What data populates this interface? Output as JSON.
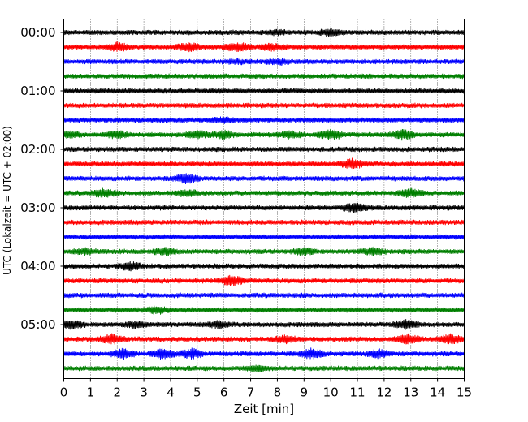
{
  "chart_data": {
    "type": "line",
    "title": "",
    "xlabel": "Zeit  [min]",
    "ylabel": "UTC (Lokalzeit = UTC + 02:00)",
    "xlim": [
      0,
      15
    ],
    "x_ticks": [
      "0",
      "1",
      "2",
      "3",
      "4",
      "5",
      "6",
      "7",
      "8",
      "9",
      "10",
      "11",
      "12",
      "13",
      "14",
      "15"
    ],
    "y_tick_labels": [
      "00:00",
      "01:00",
      "02:00",
      "03:00",
      "04:00",
      "05:00"
    ],
    "grid": "vertical dotted lines at each minute",
    "legend": "none",
    "trace_colors": [
      "#000000",
      "#ff0000",
      "#0000ff",
      "#007f00"
    ],
    "traces_per_hour": 4,
    "trace_interval_min": 15,
    "traces": [
      {
        "start": "00:00",
        "color": "#000000",
        "events": [
          {
            "t": 8.0,
            "a": 0.4
          },
          {
            "t": 10.0,
            "a": 0.6
          }
        ]
      },
      {
        "start": "00:15",
        "color": "#ff0000",
        "events": [
          {
            "t": 2.0,
            "a": 0.8
          },
          {
            "t": 4.7,
            "a": 0.8
          },
          {
            "t": 6.5,
            "a": 1.0
          },
          {
            "t": 7.8,
            "a": 0.6
          }
        ]
      },
      {
        "start": "00:30",
        "color": "#0000ff",
        "events": [
          {
            "t": 6.5,
            "a": 0.3
          },
          {
            "t": 8.0,
            "a": 0.5
          }
        ]
      },
      {
        "start": "00:45",
        "color": "#007f00",
        "events": []
      },
      {
        "start": "01:00",
        "color": "#000000",
        "events": []
      },
      {
        "start": "01:15",
        "color": "#ff0000",
        "events": []
      },
      {
        "start": "01:30",
        "color": "#0000ff",
        "events": [
          {
            "t": 6.0,
            "a": 0.4
          }
        ]
      },
      {
        "start": "01:45",
        "color": "#007f00",
        "events": [
          {
            "t": 0.2,
            "a": 0.6
          },
          {
            "t": 2.0,
            "a": 0.8
          },
          {
            "t": 5.0,
            "a": 0.7
          },
          {
            "t": 6.0,
            "a": 0.7
          },
          {
            "t": 8.5,
            "a": 0.7
          },
          {
            "t": 10.0,
            "a": 1.0
          },
          {
            "t": 12.7,
            "a": 1.0
          }
        ]
      },
      {
        "start": "02:00",
        "color": "#000000",
        "events": []
      },
      {
        "start": "02:15",
        "color": "#ff0000",
        "events": [
          {
            "t": 10.8,
            "a": 1.0
          }
        ]
      },
      {
        "start": "02:30",
        "color": "#0000ff",
        "events": [
          {
            "t": 4.6,
            "a": 1.0
          }
        ]
      },
      {
        "start": "02:45",
        "color": "#007f00",
        "events": [
          {
            "t": 1.5,
            "a": 0.8
          },
          {
            "t": 4.6,
            "a": 0.6
          },
          {
            "t": 13.0,
            "a": 0.8
          }
        ]
      },
      {
        "start": "03:00",
        "color": "#000000",
        "events": [
          {
            "t": 10.9,
            "a": 1.0
          }
        ]
      },
      {
        "start": "03:15",
        "color": "#ff0000",
        "events": []
      },
      {
        "start": "03:30",
        "color": "#0000ff",
        "events": []
      },
      {
        "start": "03:45",
        "color": "#007f00",
        "events": [
          {
            "t": 0.8,
            "a": 0.6
          },
          {
            "t": 3.8,
            "a": 0.7
          },
          {
            "t": 9.0,
            "a": 0.7
          },
          {
            "t": 11.6,
            "a": 0.8
          }
        ]
      },
      {
        "start": "04:00",
        "color": "#000000",
        "events": [
          {
            "t": 2.5,
            "a": 0.8
          }
        ]
      },
      {
        "start": "04:15",
        "color": "#ff0000",
        "events": [
          {
            "t": 6.3,
            "a": 1.0
          }
        ]
      },
      {
        "start": "04:30",
        "color": "#0000ff",
        "events": []
      },
      {
        "start": "04:45",
        "color": "#007f00",
        "events": [
          {
            "t": 3.5,
            "a": 0.7
          }
        ]
      },
      {
        "start": "05:00",
        "color": "#000000",
        "events": [
          {
            "t": 0.3,
            "a": 1.0
          },
          {
            "t": 2.7,
            "a": 0.6
          },
          {
            "t": 5.8,
            "a": 0.6
          },
          {
            "t": 12.8,
            "a": 1.0
          }
        ]
      },
      {
        "start": "05:15",
        "color": "#ff0000",
        "events": [
          {
            "t": 1.8,
            "a": 1.0
          },
          {
            "t": 8.3,
            "a": 0.7
          },
          {
            "t": 12.9,
            "a": 1.0
          },
          {
            "t": 14.5,
            "a": 1.0
          }
        ]
      },
      {
        "start": "05:30",
        "color": "#0000ff",
        "events": [
          {
            "t": 2.2,
            "a": 1.0
          },
          {
            "t": 3.7,
            "a": 1.0
          },
          {
            "t": 4.8,
            "a": 1.0
          },
          {
            "t": 9.3,
            "a": 1.0
          },
          {
            "t": 11.8,
            "a": 0.8
          }
        ]
      },
      {
        "start": "05:45",
        "color": "#007f00",
        "events": [
          {
            "t": 7.2,
            "a": 0.5
          }
        ]
      }
    ]
  }
}
